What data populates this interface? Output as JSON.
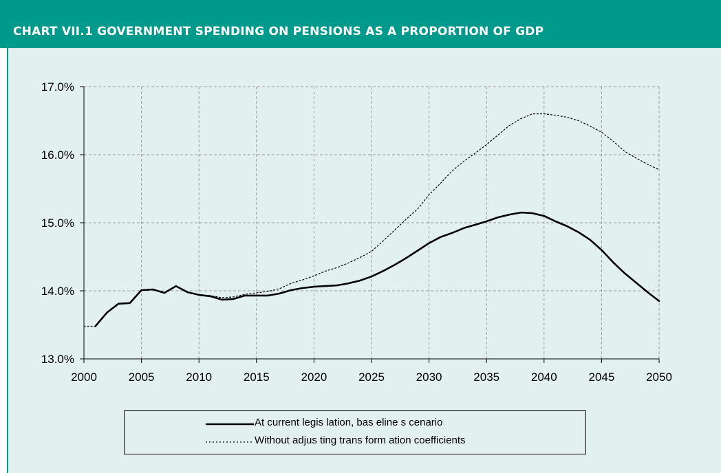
{
  "header": {
    "title": "CHART VII.1 GOVERNMENT SPENDING ON PENSIONS AS A PROPORTION OF GDP"
  },
  "colors": {
    "header_bg": "#009a8c",
    "panel_bg": "#e2f1ef",
    "line": "#000000",
    "grid": "#9a9a9a"
  },
  "chart_data": {
    "type": "line",
    "title": "CHART VII.1 GOVERNMENT SPENDING ON PENSIONS AS A PROPORTION OF GDP",
    "xlabel": "",
    "ylabel": "",
    "xlim": [
      2000,
      2050
    ],
    "ylim": [
      13.0,
      17.0
    ],
    "x_ticks": [
      "2000",
      "2005",
      "2010",
      "2015",
      "2020",
      "2025",
      "2030",
      "2035",
      "2040",
      "2045",
      "2050"
    ],
    "y_ticks": [
      "13.0%",
      "14.0%",
      "15.0%",
      "16.0%",
      "17.0%"
    ],
    "grid": true,
    "legend_position": "bottom",
    "series": [
      {
        "name": "At current legislation, baseline scenario",
        "style": "solid",
        "x": [
          2001,
          2002,
          2003,
          2004,
          2005,
          2006,
          2007,
          2008,
          2009,
          2010,
          2011,
          2012,
          2013,
          2014,
          2015,
          2016,
          2017,
          2018,
          2019,
          2020,
          2021,
          2022,
          2023,
          2024,
          2025,
          2026,
          2027,
          2028,
          2029,
          2030,
          2031,
          2032,
          2033,
          2034,
          2035,
          2036,
          2037,
          2038,
          2039,
          2040,
          2041,
          2042,
          2043,
          2044,
          2045,
          2046,
          2047,
          2048,
          2049,
          2050
        ],
        "values": [
          13.48,
          13.68,
          13.81,
          13.82,
          14.01,
          14.02,
          13.97,
          14.07,
          13.98,
          13.94,
          13.92,
          13.87,
          13.88,
          13.93,
          13.93,
          13.93,
          13.96,
          14.01,
          14.04,
          14.06,
          14.07,
          14.08,
          14.11,
          14.15,
          14.21,
          14.29,
          14.38,
          14.48,
          14.59,
          14.7,
          14.79,
          14.85,
          14.92,
          14.97,
          15.02,
          15.08,
          15.12,
          15.15,
          15.14,
          15.1,
          15.02,
          14.95,
          14.86,
          14.75,
          14.6,
          14.42,
          14.26,
          14.12,
          13.98,
          13.85
        ]
      },
      {
        "name": "Without adjusting transform ation coefficients",
        "style": "dotted",
        "x": [
          2000,
          2001,
          2002,
          2003,
          2004,
          2005,
          2006,
          2007,
          2008,
          2009,
          2010,
          2011,
          2012,
          2013,
          2014,
          2015,
          2016,
          2017,
          2018,
          2019,
          2020,
          2021,
          2022,
          2023,
          2024,
          2025,
          2026,
          2027,
          2028,
          2029,
          2030,
          2031,
          2032,
          2033,
          2034,
          2035,
          2036,
          2037,
          2038,
          2039,
          2040,
          2041,
          2042,
          2043,
          2044,
          2045,
          2046,
          2047,
          2048,
          2049,
          2050
        ],
        "values": [
          13.48,
          13.48,
          13.68,
          13.81,
          13.82,
          14.01,
          14.02,
          13.97,
          14.07,
          13.98,
          13.94,
          13.93,
          13.9,
          13.91,
          13.95,
          13.97,
          13.99,
          14.03,
          14.11,
          14.16,
          14.22,
          14.29,
          14.34,
          14.41,
          14.49,
          14.58,
          14.73,
          14.89,
          15.05,
          15.2,
          15.41,
          15.58,
          15.76,
          15.9,
          16.02,
          16.15,
          16.29,
          16.43,
          16.53,
          16.6,
          16.6,
          16.58,
          16.55,
          16.5,
          16.42,
          16.33,
          16.2,
          16.05,
          15.95,
          15.86,
          15.78
        ]
      }
    ],
    "legend": [
      "At current legis lation, bas eline s cenario",
      "Without adjus ting trans form ation coefficients"
    ]
  }
}
